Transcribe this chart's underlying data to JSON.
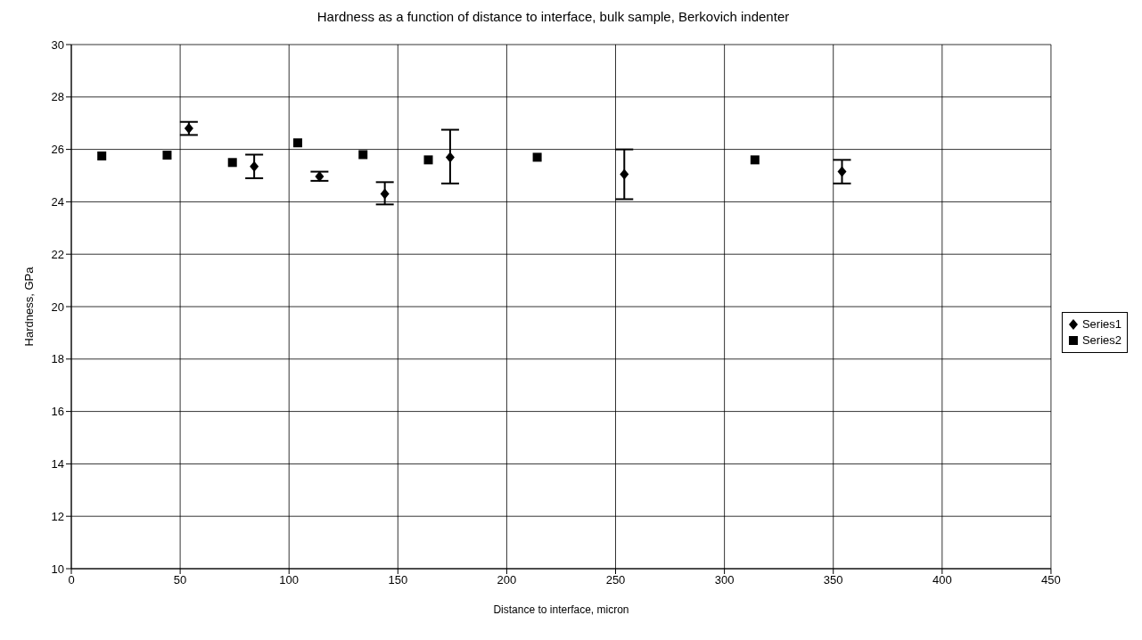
{
  "chart_data": {
    "type": "scatter",
    "title": "Hardness as a function of distance to interface, bulk sample, Berkovich indenter",
    "xlabel": "Distance to interface, micron",
    "ylabel": "Hardness, GPa",
    "series": [
      {
        "name": "Series1",
        "color": "#000000",
        "marker": "diamond",
        "x": [
          54,
          84,
          114,
          144,
          174,
          254,
          354
        ],
        "values": [
          26.8,
          25.35,
          24.97,
          24.3,
          25.7,
          25.05,
          25.15
        ],
        "errors": [
          [
            26.55,
            27.05
          ],
          [
            24.9,
            25.8
          ],
          [
            24.8,
            25.15
          ],
          [
            23.9,
            24.75
          ],
          [
            24.7,
            26.75
          ],
          [
            24.1,
            26.0
          ],
          [
            24.7,
            25.6
          ]
        ]
      },
      {
        "name": "Series2",
        "color": "#000000",
        "marker": "square",
        "x": [
          14,
          44,
          74,
          104,
          134,
          164,
          214,
          314
        ],
        "values": [
          25.75,
          25.78,
          25.5,
          26.25,
          25.8,
          25.6,
          25.7,
          25.6
        ]
      }
    ],
    "xlim": [
      0,
      450
    ],
    "xticks": [
      0,
      50,
      100,
      150,
      200,
      250,
      300,
      350,
      400,
      450
    ],
    "ylim": [
      10,
      30
    ],
    "yticks": [
      10,
      12,
      14,
      16,
      18,
      20,
      22,
      24,
      26,
      28,
      30
    ],
    "grid": true,
    "legend": "right"
  }
}
